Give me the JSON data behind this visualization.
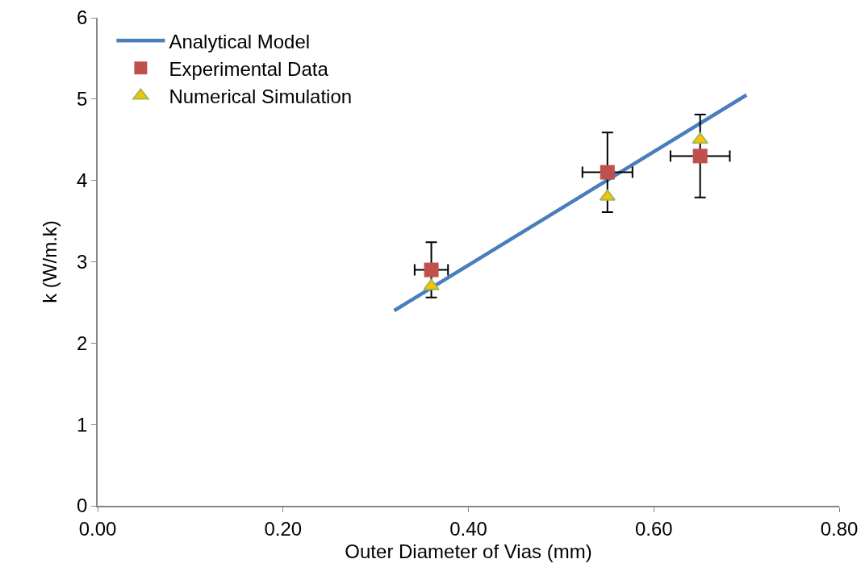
{
  "chart_data": {
    "type": "scatter",
    "xlabel": "Outer Diameter of Vias (mm)",
    "ylabel": "k (W/m.k)",
    "xlim": [
      0,
      0.8
    ],
    "xticks": [
      {
        "value": 0,
        "label": "0.00"
      },
      {
        "value": 0.2,
        "label": "0.20"
      },
      {
        "value": 0.4,
        "label": "0.40"
      },
      {
        "value": 0.6,
        "label": "0.60"
      },
      {
        "value": 0.8,
        "label": "0.80"
      }
    ],
    "ylim": [
      0,
      6
    ],
    "yticks": [
      0,
      1,
      2,
      3,
      4,
      5,
      6
    ],
    "grid": false,
    "legend": "top left",
    "series": [
      {
        "name": "Analytical Model",
        "type": "line",
        "color": "#4a7ebb",
        "x": [
          0.32,
          0.7
        ],
        "values": [
          2.4,
          5.05
        ],
        "marker": "none",
        "line_style": "solid"
      },
      {
        "name": "Experimental Data",
        "color": "#c0504d",
        "x": [
          0.36,
          0.55,
          0.65
        ],
        "values": [
          2.9,
          4.1,
          4.3
        ],
        "marker": "square",
        "errors": [
          0.34,
          0.49,
          0.51
        ],
        "xerrors": [
          0.018,
          0.027,
          0.032
        ]
      },
      {
        "name": "Numerical Simulation",
        "color": "#ffc000",
        "x": [
          0.36,
          0.55,
          0.65
        ],
        "values": [
          2.7,
          3.8,
          4.5
        ],
        "marker": "triangle"
      }
    ]
  }
}
